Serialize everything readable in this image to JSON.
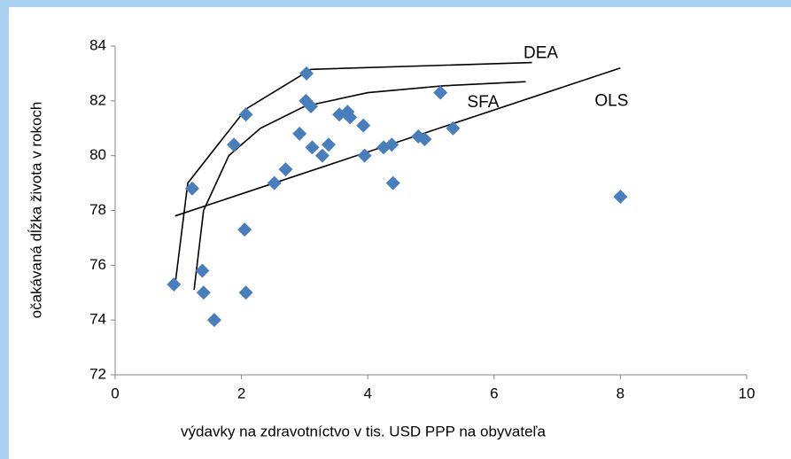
{
  "chart_data": {
    "type": "scatter",
    "x_label": "výdavky na zdravotníctvo v tis. USD PPP na obyvateľa",
    "y_label": "očakávaná dĺžka života v rokoch",
    "xlim": [
      0,
      10
    ],
    "ylim": [
      72,
      84
    ],
    "xticks": [
      0,
      2,
      4,
      6,
      8,
      10
    ],
    "yticks": [
      72,
      74,
      76,
      78,
      80,
      82,
      84
    ],
    "series": [
      {
        "color": "#4a7ebb",
        "x": [
          0.93,
          1.22,
          1.38,
          1.4,
          1.57,
          1.88,
          2.07,
          2.05,
          2.07,
          2.52,
          2.7,
          2.92,
          3.02,
          3.03,
          3.1,
          3.12,
          3.28,
          3.38,
          3.55,
          3.68,
          3.72,
          3.93,
          3.95,
          4.25,
          4.38,
          4.4,
          4.8,
          4.9,
          5.15,
          5.35,
          8.0
        ],
        "y": [
          75.3,
          78.8,
          75.8,
          75.0,
          74.0,
          80.4,
          81.5,
          77.3,
          75.0,
          79.0,
          79.5,
          80.8,
          82.0,
          83.0,
          81.8,
          80.3,
          80.0,
          80.4,
          81.5,
          81.6,
          81.4,
          81.1,
          80.0,
          80.3,
          80.4,
          79.0,
          80.7,
          80.6,
          82.3,
          81.0,
          78.5
        ]
      }
    ],
    "lines": [
      {
        "name": "DEA",
        "color": "#000000",
        "x": [
          0.95,
          1.15,
          2.07,
          3.1,
          6.6
        ],
        "y": [
          75.3,
          79.0,
          81.7,
          83.15,
          83.4
        ]
      },
      {
        "name": "SFA",
        "color": "#000000",
        "x": [
          1.25,
          1.4,
          1.8,
          2.3,
          3.0,
          4.0,
          5.2,
          6.5
        ],
        "y": [
          75.1,
          78.0,
          80.0,
          81.0,
          81.8,
          82.3,
          82.55,
          82.7
        ]
      },
      {
        "name": "OLS",
        "color": "#000000",
        "x": [
          0.95,
          8.0
        ],
        "y": [
          77.8,
          83.2
        ]
      }
    ]
  }
}
